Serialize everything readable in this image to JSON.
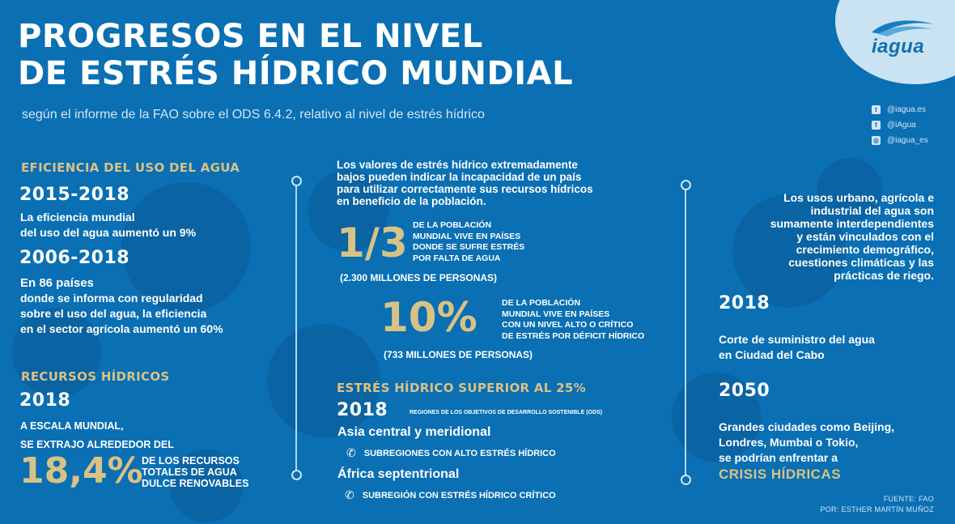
{
  "header": {
    "title_line1": "PROGRESOS EN EL NIVEL",
    "title_line2": "DE ESTRÉS HÍDRICO MUNDIAL",
    "subtitle": "según el informe de la FAO sobre el ODS 6.4.2, relativo al nivel de estrés hídrico"
  },
  "brand": {
    "logo": "iagua",
    "social": [
      {
        "icon": "twitter-icon",
        "handle": "@iagua.es"
      },
      {
        "icon": "facebook-icon",
        "handle": "@iAgua"
      },
      {
        "icon": "instagram-icon",
        "handle": "@iagua_es"
      }
    ]
  },
  "colors": {
    "background": "#0a6fb3",
    "accent_gold": "#d9c285",
    "logo_circle": "#c9e3f2"
  },
  "eficiencia": {
    "heading": "EFICIENCIA DEL USO DEL AGUA",
    "period1": "2015-2018",
    "text1_line1": "La eficiencia mundial",
    "text1_line2": "del uso del agua aumentó un 9%",
    "period2": "2006-2018",
    "text2_line1": "En 86 países",
    "text2_line2": "donde se informa con regularidad",
    "text2_line3": "sobre el uso del agua, la eficiencia",
    "text2_line4": "en el sector agrícola aumentó un 60%"
  },
  "recursos": {
    "heading": "RECURSOS HÍDRICOS",
    "year": "2018",
    "line1": "A ESCALA MUNDIAL,",
    "line2": "SE EXTRAJO ALREDEDOR DEL",
    "percent": "18,4%",
    "desc_line1": "DE LOS RECURSOS",
    "desc_line2": "TOTALES DE AGUA",
    "desc_line3": "DULCE RENOVABLES"
  },
  "centro": {
    "intro_line1": "Los valores de estrés hídrico extremadamente",
    "intro_line2": "bajos pueden indicar la incapacidad de un país",
    "intro_line3": "para utilizar correctamente sus recursos hídricos",
    "intro_line4": "en beneficio de la población.",
    "stat1_value": "1/3",
    "stat1_line1": "DE LA POBLACIÓN",
    "stat1_line2": "MUNDIAL VIVE EN PAÍSES",
    "stat1_line3": "DONDE SE SUFRE ESTRÉS",
    "stat1_line4": "POR FALTA DE AGUA",
    "stat1_people": "(2.300 MILLONES DE PERSONAS)",
    "stat2_value": "10%",
    "stat2_line1": "DE LA POBLACIÓN",
    "stat2_line2": "MUNDIAL VIVE EN PAÍSES",
    "stat2_line3": "CON UN NIVEL ALTO O CRÍTICO",
    "stat2_line4": "DE ESTRÉS POR DÉFICIT HÍDRICO",
    "stat2_people": "(733 MILLONES DE PERSONAS)",
    "estres_heading": "ESTRÉS HÍDRICO SUPERIOR AL 25%",
    "estres_year": "2018",
    "estres_note": "REGIONES DE LOS OBJETIVOS DE DESARROLLO SOSTENIBLE (ODS)",
    "region1": "Asia central y meridional",
    "region1_sub": "SUBREGIONES CON ALTO ESTRÉS HÍDRICO",
    "region2": "África septentrional",
    "region2_sub": "SUBREGIÓN CON ESTRÉS HÍDRICO CRÍTICO"
  },
  "derecha": {
    "intro_line1": "Los usos urbano, agrícola e",
    "intro_line2": "industrial del agua son",
    "intro_line3": "sumamente interdependientes",
    "intro_line4": "y están vinculados con el",
    "intro_line5": "crecimiento demográfico,",
    "intro_line6": "cuestiones climáticas y las",
    "intro_line7": "prácticas de riego.",
    "year1": "2018",
    "year1_line1": "Corte de suministro del agua",
    "year1_line2": "en Ciudad del Cabo",
    "year2": "2050",
    "year2_line1": "Grandes ciudades como Beijing,",
    "year2_line2": "Londres, Mumbai o Tokio,",
    "year2_line3": "se podrían enfrentar a",
    "year2_highlight": "CRISIS HÍDRICAS"
  },
  "credits": {
    "source": "FUENTE: FAO",
    "author": "POR: ESTHER MARTÍN MUÑOZ"
  }
}
